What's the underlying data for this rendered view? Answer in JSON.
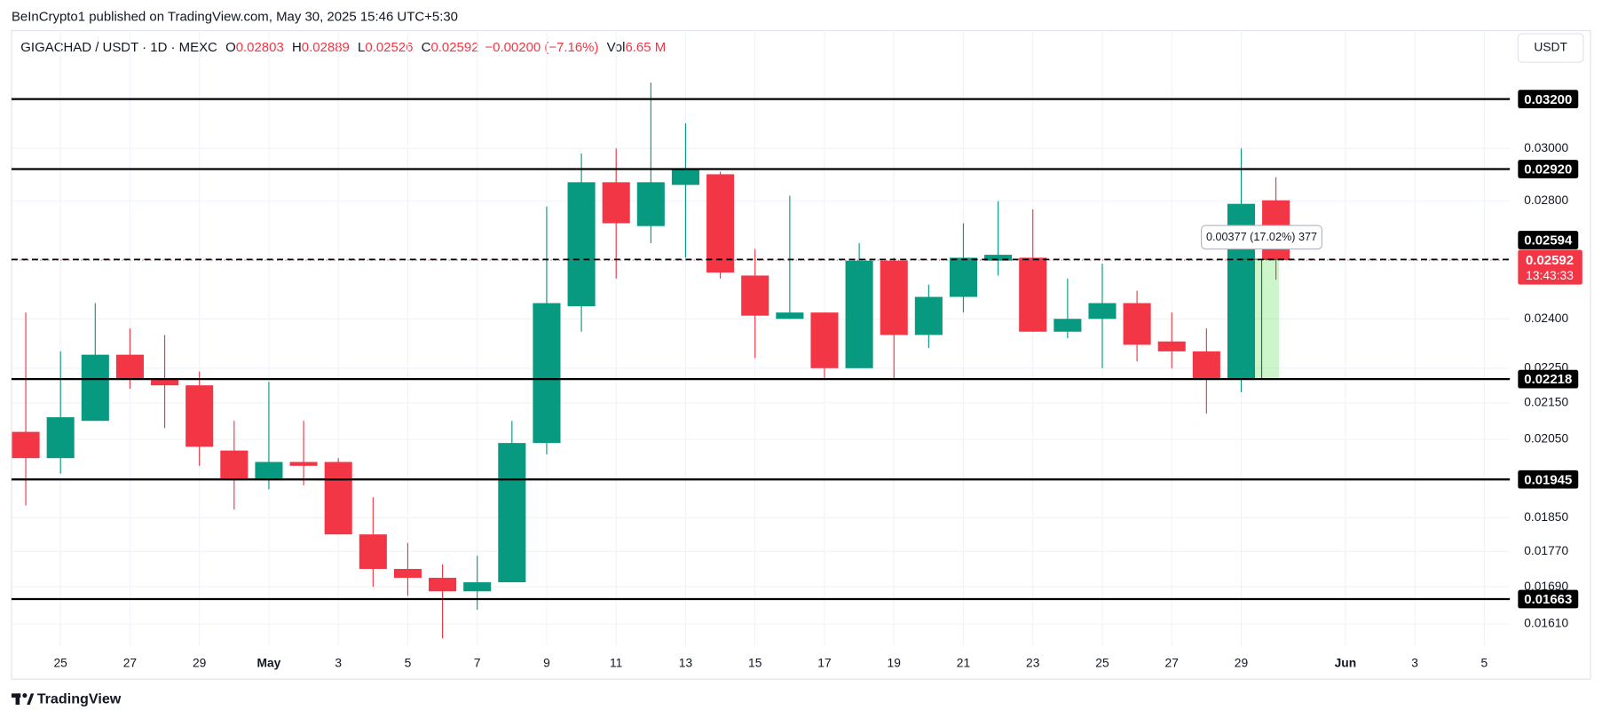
{
  "header": {
    "attribution": "BeInCrypto1 published on TradingView.com, May 30, 2025 15:46 UTC+5:30",
    "symbol": "GIGACHAD / USDT · 1D · MEXC",
    "ohlc": [
      {
        "key": "O",
        "value": "0.02803"
      },
      {
        "key": "H",
        "value": "0.02889"
      },
      {
        "key": "L",
        "value": "0.02526"
      },
      {
        "key": "C",
        "value": "0.02592"
      }
    ],
    "change": "−0.00200 (−7.16%)",
    "volume_key": "Vol",
    "volume": "6.65 M",
    "currency": "USDT"
  },
  "chart_data": {
    "type": "candlestick",
    "log_scale": true,
    "grid": true,
    "up_color": "#089981",
    "down_color": "#f23645",
    "categories": [
      null,
      "25",
      null,
      "27",
      null,
      "29",
      null,
      "May",
      null,
      "3",
      null,
      "5",
      null,
      "7",
      null,
      "9",
      null,
      "11",
      null,
      "13",
      null,
      "15",
      null,
      "17",
      null,
      "19",
      null,
      "21",
      null,
      "23",
      null,
      "25",
      null,
      "27",
      null,
      "29",
      null,
      null,
      "Jun",
      null,
      "3",
      null,
      "5"
    ],
    "open": [
      0.0207,
      0.02,
      0.021,
      0.0229,
      0.0222,
      0.022,
      0.0202,
      0.01945,
      0.0199,
      0.0199,
      0.0181,
      0.0173,
      0.0171,
      0.0168,
      0.017,
      0.0204,
      0.0244,
      0.0287,
      0.0271,
      0.0286,
      0.029,
      0.0254,
      0.024,
      0.0242,
      0.0225,
      0.0259,
      0.0235,
      0.0247,
      0.0259,
      0.026,
      0.0236,
      0.024,
      0.0245,
      0.0233,
      0.023,
      0.0222,
      0.02803,
      null,
      null,
      null,
      null,
      null,
      null
    ],
    "high": [
      0.0242,
      0.023,
      0.0245,
      0.0237,
      0.0235,
      0.0224,
      0.021,
      0.0221,
      0.021,
      0.02,
      0.019,
      0.0179,
      0.0174,
      0.0176,
      0.021,
      0.0278,
      0.0298,
      0.03,
      0.0327,
      0.031,
      0.0291,
      0.0263,
      0.0282,
      0.0242,
      0.0265,
      0.026,
      0.0251,
      0.0272,
      0.028,
      0.0277,
      0.0253,
      0.0258,
      0.0249,
      0.0242,
      0.0237,
      0.03,
      0.02889,
      null,
      null,
      null,
      null,
      null,
      null
    ],
    "low": [
      0.0188,
      0.0196,
      0.021,
      0.0219,
      0.0208,
      0.0198,
      0.0187,
      0.0192,
      0.0193,
      0.0181,
      0.0169,
      0.0167,
      0.0158,
      0.0164,
      0.017,
      0.0201,
      0.0236,
      0.0253,
      0.0265,
      0.026,
      0.0253,
      0.0228,
      0.024,
      0.0222,
      0.0225,
      0.0222,
      0.0231,
      0.0242,
      0.0254,
      0.0236,
      0.0234,
      0.0225,
      0.0227,
      0.0225,
      0.0212,
      0.0218,
      0.02526,
      null,
      null,
      null,
      null,
      null,
      null
    ],
    "close": [
      0.02,
      0.0211,
      0.0229,
      0.0222,
      0.022,
      0.0203,
      0.01945,
      0.0199,
      0.0198,
      0.0181,
      0.0173,
      0.0171,
      0.0168,
      0.017,
      0.0204,
      0.0245,
      0.0287,
      0.0272,
      0.0287,
      0.0292,
      0.0255,
      0.0241,
      0.0242,
      0.0225,
      0.0259,
      0.0235,
      0.0247,
      0.026,
      0.0261,
      0.0236,
      0.024,
      0.0245,
      0.0232,
      0.023,
      0.0222,
      0.0279,
      0.02592,
      null,
      null,
      null,
      null,
      null,
      null
    ],
    "ylim": [
      0.01565,
      0.035
    ],
    "yticks": [
      {
        "value": 0.03,
        "label": "0.03000"
      },
      {
        "value": 0.028,
        "label": "0.02800"
      },
      {
        "value": 0.024,
        "label": "0.02400"
      },
      {
        "value": 0.0225,
        "label": "0.02250"
      },
      {
        "value": 0.0215,
        "label": "0.02150"
      },
      {
        "value": 0.0205,
        "label": "0.02050"
      },
      {
        "value": 0.0185,
        "label": "0.01850"
      },
      {
        "value": 0.0177,
        "label": "0.01770"
      },
      {
        "value": 0.0169,
        "label": "0.01690"
      },
      {
        "value": 0.0161,
        "label": "0.01610"
      }
    ],
    "hlines": [
      {
        "value": 0.032,
        "label": "0.03200"
      },
      {
        "value": 0.0292,
        "label": "0.02920"
      },
      {
        "value": 0.02594,
        "label": "0.02594",
        "dashed": true
      },
      {
        "value": 0.02218,
        "label": "0.02218"
      },
      {
        "value": 0.01945,
        "label": "0.01945"
      },
      {
        "value": 0.01663,
        "label": "0.01663"
      }
    ],
    "last_price": {
      "value": 0.02592,
      "label": "0.02592",
      "countdown": "13:43:33"
    },
    "measure": {
      "from": 0.02218,
      "to": 0.02595,
      "label": "0.00377 (17.02%) 377"
    }
  },
  "footer": {
    "brand": "TradingView"
  }
}
